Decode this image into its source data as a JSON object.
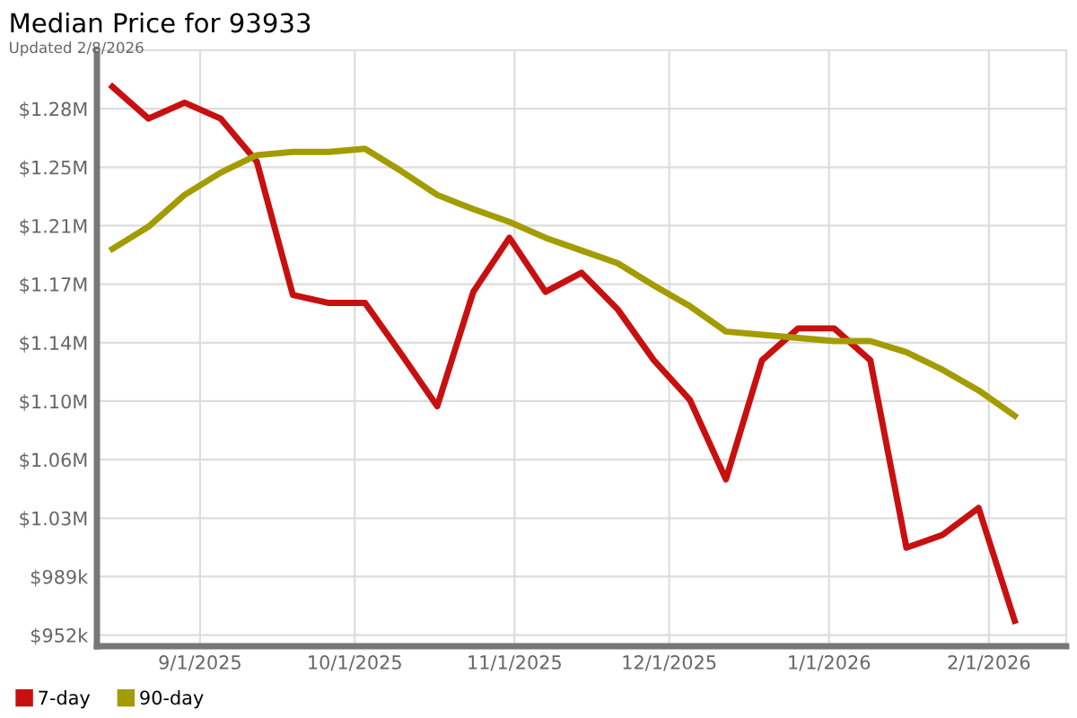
{
  "chart_data": {
    "type": "line",
    "title": "Median Price for 93933",
    "subtitle": "Updated 2/8/2026",
    "x": [
      "2025-08-15",
      "2025-08-22",
      "2025-08-29",
      "2025-09-05",
      "2025-09-12",
      "2025-09-19",
      "2025-09-26",
      "2025-10-03",
      "2025-10-10",
      "2025-10-17",
      "2025-10-24",
      "2025-10-31",
      "2025-11-07",
      "2025-11-14",
      "2025-11-21",
      "2025-11-28",
      "2025-12-05",
      "2025-12-12",
      "2025-12-19",
      "2025-12-26",
      "2026-01-02",
      "2026-01-09",
      "2026-01-16",
      "2026-01-23",
      "2026-01-30",
      "2026-02-06"
    ],
    "series": [
      {
        "name": "7-day",
        "color": "#c81010",
        "values": [
          1297000,
          1277000,
          1287000,
          1277000,
          1250000,
          1166000,
          1161000,
          1161000,
          1129000,
          1096000,
          1168000,
          1202000,
          1168000,
          1180000,
          1157000,
          1125000,
          1100000,
          1050000,
          1125000,
          1145000,
          1145000,
          1125000,
          1007000,
          1015000,
          1032000,
          961000
        ]
      },
      {
        "name": "90-day",
        "color": "#a39c00",
        "values": [
          1195000,
          1209000,
          1229000,
          1243000,
          1254000,
          1256000,
          1256000,
          1258000,
          1244000,
          1229000,
          1220000,
          1212000,
          1202000,
          1194000,
          1186000,
          1172000,
          1159000,
          1143000,
          1141000,
          1139000,
          1137000,
          1137000,
          1130000,
          1119000,
          1106000,
          1090000
        ]
      }
    ],
    "xlim": [
      "2025-08-12",
      "2026-02-16"
    ],
    "xticks": [
      {
        "value": "2025-09-01",
        "label": "9/1/2025"
      },
      {
        "value": "2025-10-01",
        "label": "10/1/2025"
      },
      {
        "value": "2025-11-01",
        "label": "11/1/2025"
      },
      {
        "value": "2025-12-01",
        "label": "12/1/2025"
      },
      {
        "value": "2026-01-01",
        "label": "1/1/2026"
      },
      {
        "value": "2026-02-01",
        "label": "2/1/2026"
      }
    ],
    "ylim": [
      945000,
      1320000
    ],
    "yticks": [
      {
        "value": 952000,
        "label": "$952k"
      },
      {
        "value": 988800,
        "label": "$989k"
      },
      {
        "value": 1025600,
        "label": "$1.03M"
      },
      {
        "value": 1062400,
        "label": "$1.06M"
      },
      {
        "value": 1099200,
        "label": "$1.10M"
      },
      {
        "value": 1136000,
        "label": "$1.14M"
      },
      {
        "value": 1172800,
        "label": "$1.17M"
      },
      {
        "value": 1209600,
        "label": "$1.21M"
      },
      {
        "value": 1246400,
        "label": "$1.25M"
      },
      {
        "value": 1283200,
        "label": "$1.28M"
      }
    ],
    "grid": true,
    "legend": "bottom left",
    "marker": "none",
    "line_style": "solid"
  }
}
